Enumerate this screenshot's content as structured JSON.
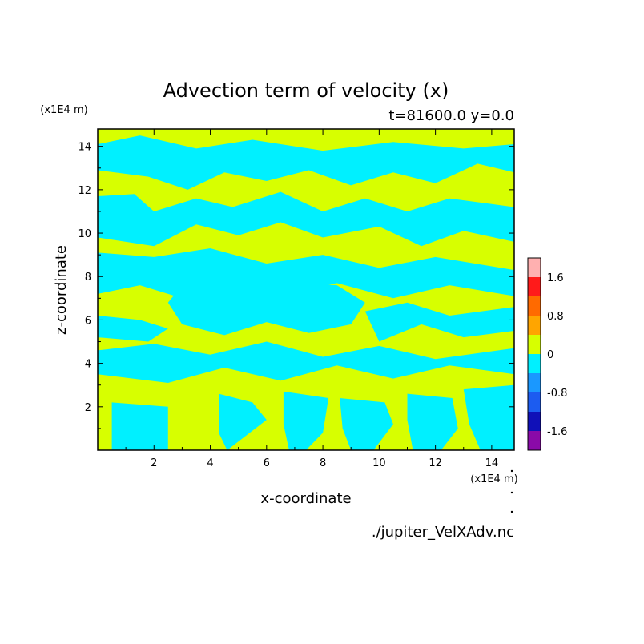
{
  "chart_data": {
    "type": "heatmap",
    "title": "Advection term of velocity (x)",
    "subtitle": "t=81600.0 y=0.0",
    "xlabel": "x-coordinate",
    "ylabel": "z-coordinate",
    "x_unit_label": "(x1E4 m)",
    "y_unit_label": "(x1E4 m)",
    "xlim": [
      0,
      14.8
    ],
    "ylim": [
      0,
      14.8
    ],
    "x_ticks": [
      2,
      4,
      6,
      8,
      10,
      12,
      14
    ],
    "y_ticks": [
      2,
      4,
      6,
      8,
      10,
      12,
      14
    ],
    "colorbar": {
      "levels": [
        {
          "from": -2.0,
          "to": -1.6,
          "color": "#8a0aa8"
        },
        {
          "from": -1.6,
          "to": -1.2,
          "color": "#1010b8"
        },
        {
          "from": -1.2,
          "to": -0.8,
          "color": "#1c5cf0"
        },
        {
          "from": -0.8,
          "to": -0.4,
          "color": "#1a98ff"
        },
        {
          "from": -0.4,
          "to": 0.0,
          "color": "#00f0ff"
        },
        {
          "from": 0.0,
          "to": 0.4,
          "color": "#d7ff00"
        },
        {
          "from": 0.4,
          "to": 0.8,
          "color": "#ffa500"
        },
        {
          "from": 0.8,
          "to": 1.2,
          "color": "#ff6a00"
        },
        {
          "from": 1.2,
          "to": 1.6,
          "color": "#ff1a1a"
        },
        {
          "from": 1.6,
          "to": 2.0,
          "color": "#ffb0b0"
        }
      ],
      "tick_labels": [
        "1.6",
        "0.8",
        "0",
        "-0.8",
        "-1.6"
      ],
      "tick_values": [
        1.6,
        0.8,
        0.0,
        -0.8,
        -1.6
      ]
    },
    "background_level_color": "#d7ff00",
    "negative_level_color": "#00f0ff",
    "negative_regions": [
      [
        [
          0.0,
          14.1
        ],
        [
          1.5,
          14.5
        ],
        [
          3.5,
          13.9
        ],
        [
          5.5,
          14.3
        ],
        [
          8.0,
          13.8
        ],
        [
          10.5,
          14.2
        ],
        [
          13.0,
          13.9
        ],
        [
          14.8,
          14.1
        ],
        [
          14.8,
          12.8
        ],
        [
          13.5,
          13.2
        ],
        [
          12.0,
          12.3
        ],
        [
          10.5,
          12.8
        ],
        [
          9.0,
          12.2
        ],
        [
          7.5,
          12.9
        ],
        [
          6.0,
          12.4
        ],
        [
          4.5,
          12.8
        ],
        [
          3.2,
          12.0
        ],
        [
          1.8,
          12.6
        ],
        [
          0.0,
          12.9
        ]
      ],
      [
        [
          0.0,
          11.7
        ],
        [
          1.3,
          11.8
        ],
        [
          2.0,
          11.0
        ],
        [
          3.5,
          11.6
        ],
        [
          4.8,
          11.2
        ],
        [
          6.5,
          11.9
        ],
        [
          8.0,
          11.0
        ],
        [
          9.5,
          11.6
        ],
        [
          11.0,
          11.0
        ],
        [
          12.5,
          11.6
        ],
        [
          14.8,
          11.2
        ],
        [
          14.8,
          9.6
        ],
        [
          13.0,
          10.1
        ],
        [
          11.5,
          9.4
        ],
        [
          10.0,
          10.3
        ],
        [
          8.0,
          9.8
        ],
        [
          6.5,
          10.5
        ],
        [
          5.0,
          9.9
        ],
        [
          3.5,
          10.4
        ],
        [
          2.0,
          9.4
        ],
        [
          0.0,
          9.8
        ]
      ],
      [
        [
          0.0,
          9.1
        ],
        [
          2.0,
          8.9
        ],
        [
          4.0,
          9.3
        ],
        [
          6.0,
          8.6
        ],
        [
          8.0,
          9.0
        ],
        [
          10.0,
          8.4
        ],
        [
          12.0,
          8.9
        ],
        [
          14.8,
          8.3
        ],
        [
          14.8,
          7.1
        ],
        [
          12.5,
          7.6
        ],
        [
          10.5,
          7.0
        ],
        [
          8.5,
          7.7
        ],
        [
          6.5,
          7.1
        ],
        [
          5.0,
          7.6
        ],
        [
          3.0,
          7.0
        ],
        [
          1.5,
          7.6
        ],
        [
          0.0,
          7.2
        ]
      ],
      [
        [
          3.0,
          7.6
        ],
        [
          5.5,
          7.8
        ],
        [
          8.5,
          7.6
        ],
        [
          9.5,
          6.8
        ],
        [
          9.0,
          5.8
        ],
        [
          7.5,
          5.4
        ],
        [
          6.0,
          5.9
        ],
        [
          4.5,
          5.3
        ],
        [
          3.0,
          5.8
        ],
        [
          2.5,
          6.8
        ]
      ],
      [
        [
          0.0,
          6.2
        ],
        [
          1.5,
          6.0
        ],
        [
          2.5,
          5.6
        ],
        [
          1.8,
          5.0
        ],
        [
          0.0,
          5.2
        ]
      ],
      [
        [
          9.5,
          6.4
        ],
        [
          11.0,
          6.8
        ],
        [
          12.5,
          6.2
        ],
        [
          14.8,
          6.6
        ],
        [
          14.8,
          5.5
        ],
        [
          13.0,
          5.2
        ],
        [
          11.5,
          5.8
        ],
        [
          10.0,
          5.0
        ]
      ],
      [
        [
          0.0,
          4.6
        ],
        [
          2.0,
          4.9
        ],
        [
          4.0,
          4.4
        ],
        [
          6.0,
          5.0
        ],
        [
          8.0,
          4.3
        ],
        [
          10.0,
          4.8
        ],
        [
          12.0,
          4.2
        ],
        [
          14.8,
          4.7
        ],
        [
          14.8,
          3.5
        ],
        [
          12.5,
          3.9
        ],
        [
          10.5,
          3.3
        ],
        [
          8.5,
          3.9
        ],
        [
          6.5,
          3.2
        ],
        [
          4.5,
          3.8
        ],
        [
          2.5,
          3.1
        ],
        [
          0.0,
          3.5
        ]
      ],
      [
        [
          0.5,
          2.2
        ],
        [
          2.5,
          2.0
        ],
        [
          2.5,
          0.0
        ],
        [
          0.5,
          0.0
        ]
      ],
      [
        [
          4.3,
          2.6
        ],
        [
          5.5,
          2.2
        ],
        [
          6.0,
          1.4
        ],
        [
          5.2,
          0.6
        ],
        [
          4.6,
          0.0
        ],
        [
          4.3,
          0.8
        ]
      ],
      [
        [
          6.6,
          2.7
        ],
        [
          8.2,
          2.4
        ],
        [
          8.0,
          0.8
        ],
        [
          7.4,
          0.0
        ],
        [
          6.8,
          0.0
        ],
        [
          6.6,
          1.2
        ]
      ],
      [
        [
          8.6,
          2.4
        ],
        [
          10.2,
          2.2
        ],
        [
          10.5,
          1.2
        ],
        [
          9.8,
          0.0
        ],
        [
          9.0,
          0.0
        ],
        [
          8.7,
          1.0
        ]
      ],
      [
        [
          11.0,
          2.6
        ],
        [
          12.6,
          2.4
        ],
        [
          12.8,
          1.0
        ],
        [
          12.2,
          0.0
        ],
        [
          11.2,
          0.0
        ],
        [
          11.0,
          1.4
        ]
      ],
      [
        [
          13.0,
          2.8
        ],
        [
          14.8,
          3.0
        ],
        [
          14.8,
          0.0
        ],
        [
          13.6,
          0.0
        ],
        [
          13.2,
          1.2
        ]
      ]
    ],
    "grid": false,
    "legend": "right colorbar"
  },
  "footer": {
    "filename": "./jupiter_VelXAdv.nc"
  }
}
